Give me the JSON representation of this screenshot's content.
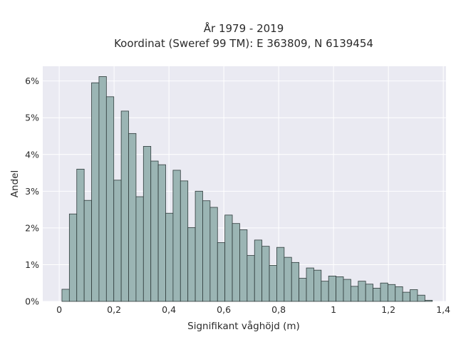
{
  "chart_data": {
    "type": "bar",
    "title": "År 1979 - 2019",
    "subtitle": "Koordinat (Sweref 99 TM): E 363809, N 6139454",
    "xlabel": "Signifikant våghöjd (m)",
    "ylabel": "Andel",
    "xlim": [
      -0.06,
      1.41
    ],
    "ylim": [
      0,
      6.4
    ],
    "x_ticks": [
      0,
      0.2,
      0.4,
      0.6,
      0.8,
      1.0,
      1.2,
      1.4
    ],
    "x_tick_labels": [
      "0",
      "0,2",
      "0,4",
      "0,6",
      "0,8",
      "1",
      "1,2",
      "1,4"
    ],
    "y_ticks": [
      0,
      1,
      2,
      3,
      4,
      5,
      6
    ],
    "y_tick_labels": [
      "0%",
      "1%",
      "2%",
      "3%",
      "4%",
      "5%",
      "6%"
    ],
    "y_unit": "percent",
    "grid": true,
    "bar_color": "#9bb5b4",
    "bar_edge_color": "#2f3b3b",
    "plot_background": "#eaeaf2",
    "bin_start": 0.01,
    "bin_width": 0.027,
    "values": [
      0.33,
      2.38,
      3.6,
      2.75,
      5.95,
      6.12,
      5.57,
      3.3,
      5.18,
      4.57,
      2.85,
      4.22,
      3.82,
      3.72,
      2.4,
      3.57,
      3.28,
      2.01,
      3.0,
      2.74,
      2.56,
      1.6,
      2.35,
      2.12,
      1.95,
      1.25,
      1.67,
      1.5,
      0.98,
      1.47,
      1.2,
      1.06,
      0.63,
      0.91,
      0.85,
      0.55,
      0.69,
      0.67,
      0.6,
      0.41,
      0.55,
      0.47,
      0.36,
      0.5,
      0.46,
      0.4,
      0.25,
      0.32,
      0.17,
      0.03
    ]
  }
}
